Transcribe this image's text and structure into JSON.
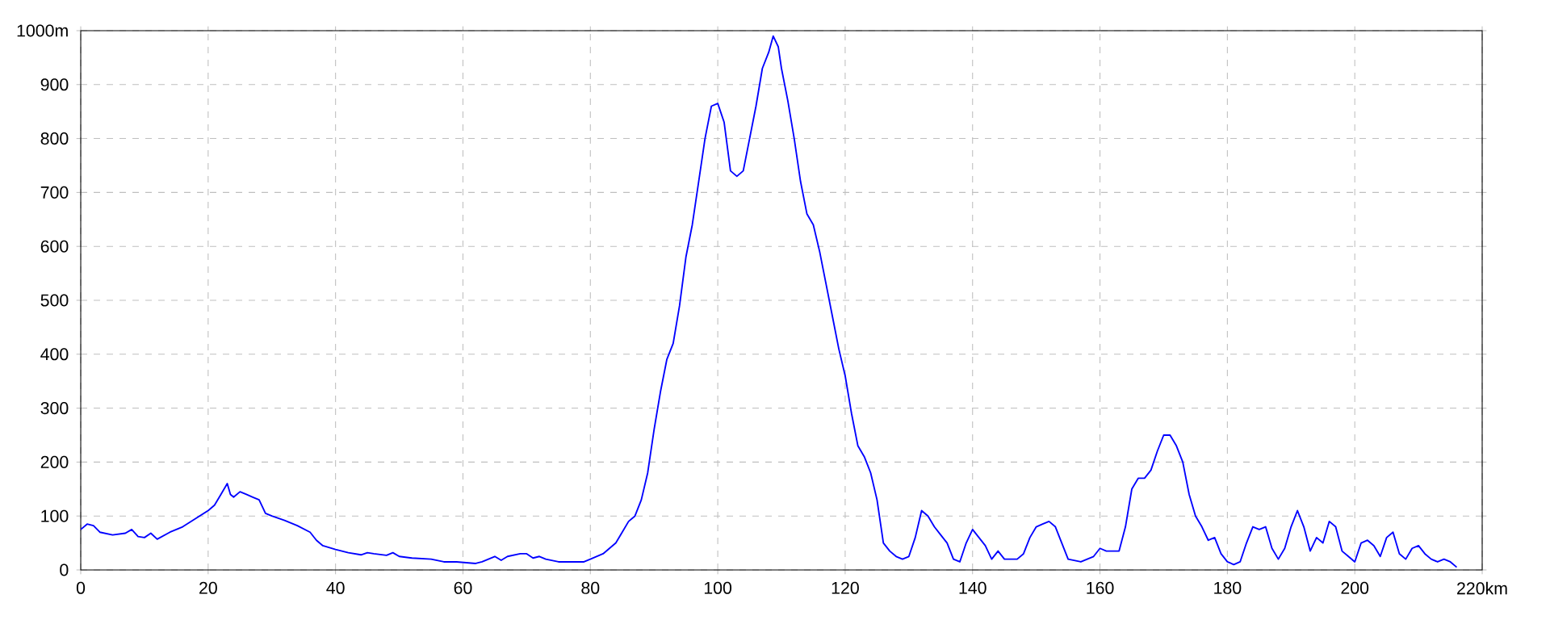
{
  "chart_data": {
    "type": "line",
    "color": "#0000ff",
    "grid": true,
    "x": [
      0,
      1,
      2,
      3,
      5,
      7,
      8,
      9,
      10,
      11,
      12,
      14,
      16,
      18,
      20,
      21,
      22,
      23,
      23.5,
      24,
      25,
      26,
      27,
      28,
      29,
      30,
      32,
      34,
      36,
      37,
      38,
      40,
      42,
      44,
      45,
      46,
      48,
      49,
      50,
      52,
      55,
      57,
      59,
      62,
      63,
      64,
      65,
      66,
      67,
      69,
      70,
      71,
      72,
      73,
      75,
      77,
      79,
      80,
      82,
      84,
      85,
      86,
      87,
      88,
      89,
      90,
      91,
      92,
      93,
      94,
      95,
      96,
      97,
      98,
      99,
      100,
      101,
      102,
      103,
      104,
      105,
      106,
      107,
      108,
      108.7,
      109.5,
      110,
      111,
      112,
      113,
      114,
      115,
      116,
      117,
      118,
      119,
      120,
      121,
      122,
      123,
      123.5,
      124,
      125,
      126,
      127,
      128,
      129,
      130,
      131,
      132,
      133,
      134,
      135,
      136,
      137,
      138,
      139,
      140,
      141,
      142,
      143,
      144,
      145,
      147,
      148,
      149,
      150,
      151,
      152,
      153,
      154,
      155,
      157,
      159,
      160,
      161,
      163,
      164,
      165,
      166,
      167,
      168,
      169,
      170,
      171,
      172,
      173,
      174,
      175,
      176,
      177,
      178,
      179,
      180,
      181,
      182,
      183,
      184,
      185,
      186,
      187,
      188,
      189,
      190,
      191,
      192,
      193,
      194,
      195,
      196,
      197,
      198,
      199,
      200,
      201,
      202,
      203,
      204,
      205,
      206,
      207,
      208,
      209,
      210,
      211,
      212,
      213,
      214,
      215,
      216
    ],
    "values": [
      75,
      85,
      82,
      70,
      65,
      68,
      75,
      62,
      60,
      68,
      57,
      70,
      80,
      95,
      110,
      120,
      140,
      160,
      140,
      135,
      145,
      140,
      135,
      130,
      105,
      100,
      92,
      82,
      70,
      55,
      45,
      38,
      32,
      28,
      32,
      30,
      27,
      32,
      25,
      22,
      20,
      15,
      15,
      12,
      15,
      20,
      25,
      18,
      25,
      30,
      30,
      22,
      25,
      20,
      15,
      15,
      15,
      20,
      30,
      50,
      70,
      90,
      100,
      130,
      180,
      260,
      330,
      390,
      420,
      490,
      580,
      640,
      720,
      800,
      860,
      865,
      830,
      740,
      730,
      740,
      800,
      860,
      930,
      960,
      990,
      970,
      930,
      870,
      800,
      720,
      660,
      640,
      590,
      530,
      470,
      410,
      360,
      290,
      230,
      210,
      195,
      180,
      130,
      50,
      35,
      25,
      20,
      25,
      60,
      110,
      100,
      80,
      65,
      50,
      20,
      15,
      50,
      75,
      60,
      45,
      20,
      35,
      20,
      20,
      30,
      60,
      80,
      85,
      90,
      80,
      50,
      20,
      15,
      25,
      40,
      35,
      35,
      80,
      150,
      170,
      170,
      185,
      220,
      250,
      250,
      230,
      200,
      140,
      100,
      80,
      55,
      60,
      30,
      15,
      10,
      15,
      50,
      80,
      75,
      80,
      40,
      20,
      40,
      80,
      110,
      80,
      35,
      60,
      50,
      90,
      80,
      35,
      25,
      15,
      50,
      55,
      45,
      25,
      60,
      70,
      30,
      20,
      40,
      45,
      30,
      20,
      15,
      20,
      15,
      5
    ],
    "xlim": [
      0,
      220
    ],
    "ylim": [
      0,
      1000
    ],
    "xticks": [
      0,
      20,
      40,
      60,
      80,
      100,
      120,
      140,
      160,
      180,
      200,
      {
        "value": 220,
        "label": "220km"
      }
    ],
    "yticks": [
      0,
      100,
      200,
      300,
      400,
      500,
      600,
      700,
      800,
      900,
      {
        "value": 1000,
        "label": "1000m"
      }
    ]
  }
}
